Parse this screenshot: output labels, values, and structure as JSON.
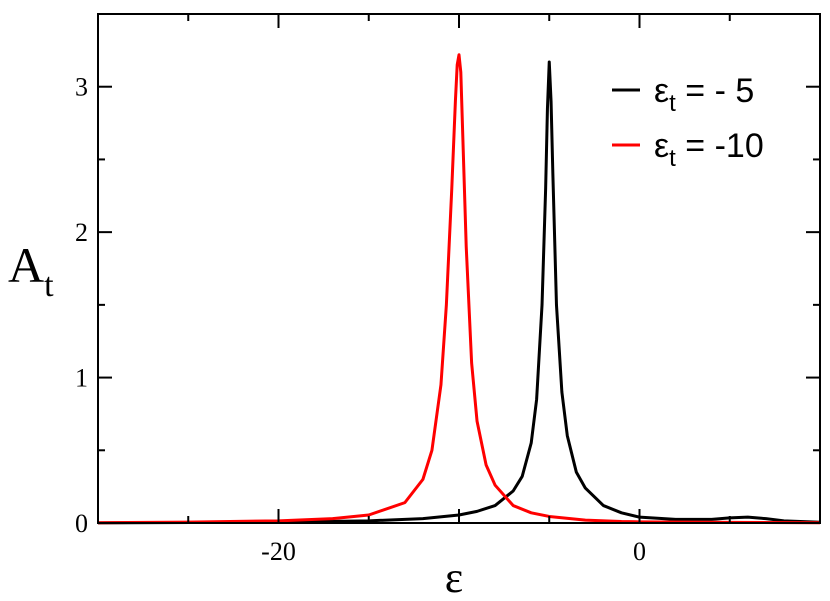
{
  "chart_data": {
    "type": "line",
    "xlabel": "ε",
    "ylabel": {
      "base": "A",
      "sub": "t"
    },
    "xlim": [
      -30,
      10
    ],
    "ylim": [
      0,
      3.5
    ],
    "xticks": [
      -20,
      0
    ],
    "xtick_labels": [
      "-20",
      "0"
    ],
    "yticks": [
      0,
      1,
      2,
      3
    ],
    "ytick_labels": [
      "0",
      "1",
      "2",
      "3"
    ],
    "grid": false,
    "legend_position": "top-right",
    "series": [
      {
        "name": "ε_t = - 5",
        "legend": {
          "base": "ε",
          "sub": "t",
          "rest": " = - 5"
        },
        "color": "#000000",
        "x": [
          -30,
          -20,
          -15,
          -12,
          -10,
          -9,
          -8,
          -7,
          -6.5,
          -6,
          -5.7,
          -5.4,
          -5.2,
          -5.1,
          -5,
          -4.9,
          -4.8,
          -4.6,
          -4.3,
          -4,
          -3.5,
          -3,
          -2,
          -1,
          0,
          2,
          4,
          5,
          6,
          7,
          8,
          10
        ],
        "y": [
          0.001,
          0.006,
          0.015,
          0.03,
          0.055,
          0.08,
          0.12,
          0.22,
          0.32,
          0.55,
          0.85,
          1.5,
          2.3,
          2.85,
          3.17,
          2.9,
          2.4,
          1.5,
          0.9,
          0.6,
          0.35,
          0.24,
          0.12,
          0.07,
          0.04,
          0.025,
          0.025,
          0.035,
          0.04,
          0.03,
          0.015,
          0.005
        ]
      },
      {
        "name": "ε_t = -10",
        "legend": {
          "base": "ε",
          "sub": "t",
          "rest": " = -10"
        },
        "color": "#ff0000",
        "x": [
          -30,
          -25,
          -20,
          -17,
          -15,
          -13,
          -12,
          -11.5,
          -11,
          -10.7,
          -10.4,
          -10.2,
          -10.1,
          -10,
          -9.9,
          -9.8,
          -9.6,
          -9.3,
          -9,
          -8.5,
          -8,
          -7,
          -6,
          -5,
          -3,
          -1,
          0,
          5,
          10
        ],
        "y": [
          0.002,
          0.006,
          0.015,
          0.03,
          0.055,
          0.14,
          0.3,
          0.5,
          0.95,
          1.5,
          2.3,
          2.9,
          3.15,
          3.22,
          3.1,
          2.7,
          1.9,
          1.1,
          0.7,
          0.4,
          0.26,
          0.12,
          0.07,
          0.045,
          0.02,
          0.01,
          0.008,
          0.004,
          0.002
        ]
      }
    ]
  }
}
